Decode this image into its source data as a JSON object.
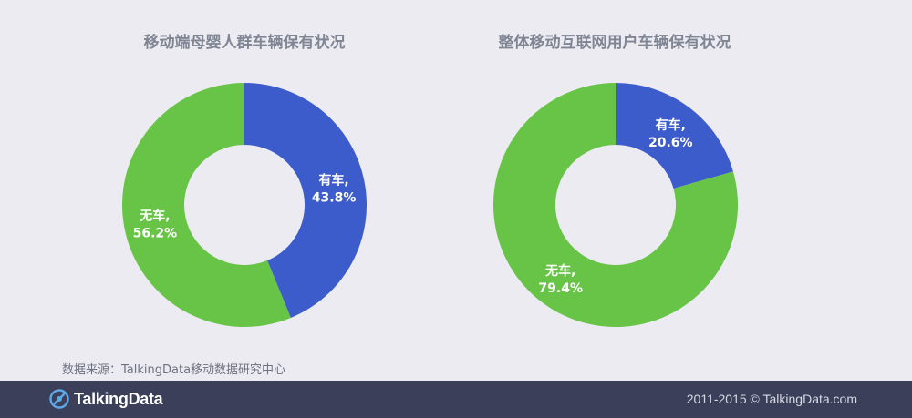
{
  "chart_data": [
    {
      "type": "pie",
      "title": "移动端母婴人群车辆保有状况",
      "categories": [
        "有车",
        "无车"
      ],
      "values": [
        43.8,
        56.2
      ],
      "colors": [
        "#3d5ccc",
        "#67c447"
      ],
      "labels": [
        {
          "line1": "有车,",
          "line2": "43.8%"
        },
        {
          "line1": "无车,",
          "line2": "56.2%"
        }
      ]
    },
    {
      "type": "pie",
      "title": "整体移动互联网用户车辆保有状况",
      "categories": [
        "有车",
        "无车"
      ],
      "values": [
        20.6,
        79.4
      ],
      "colors": [
        "#3d5ccc",
        "#67c447"
      ],
      "labels": [
        {
          "line1": "有车,",
          "line2": "20.6%"
        },
        {
          "line1": "无车,",
          "line2": "79.4%"
        }
      ]
    }
  ],
  "source_text": "数据来源：TalkingData移动数据研究中心",
  "footer": {
    "brand": "TalkingData",
    "brand_icon": "talkingdata-logo-icon",
    "copyright": "2011-2015 © TalkingData.com"
  },
  "colors": {
    "background": "#ebebf1",
    "footer": "#3c3f5a",
    "title": "#7f8593"
  }
}
